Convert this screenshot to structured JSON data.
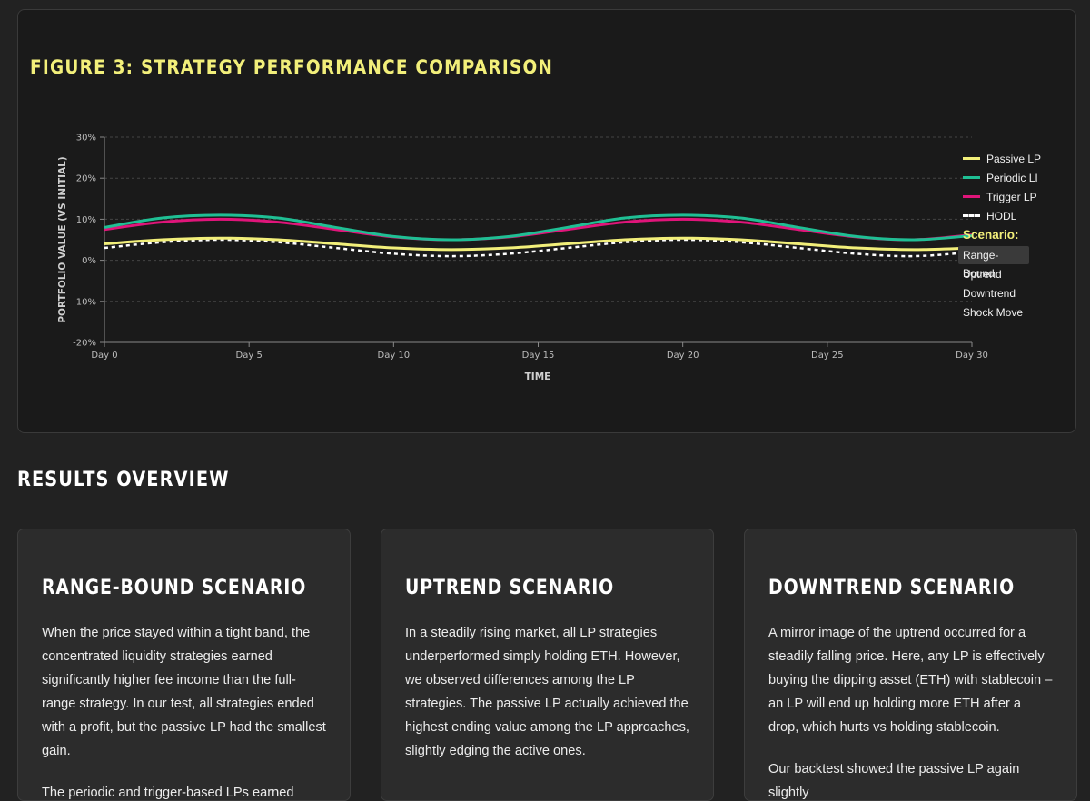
{
  "figure": {
    "title": "FIGURE 3: STRATEGY PERFORMANCE COMPARISON",
    "legend": [
      {
        "label": "Passive LP",
        "color": "#f2ef7a",
        "dashed": false
      },
      {
        "label": "Periodic LI",
        "color": "#1fbf94",
        "dashed": false
      },
      {
        "label": "Trigger LP",
        "color": "#e0157a",
        "dashed": false
      },
      {
        "label": "HODL",
        "color": "#ffffff",
        "dashed": true
      }
    ],
    "scenario_label": "Scenario:",
    "scenarios": [
      "Range-Bound",
      "Uptrend",
      "Downtrend",
      "Shock Move"
    ],
    "active_scenario": "Range-Bound"
  },
  "chart_data": {
    "type": "line",
    "xlabel": "TIME",
    "ylabel": "PORTFOLIO VALUE (VS INITIAL)",
    "x_ticks": [
      "Day 0",
      "Day 5",
      "Day 10",
      "Day 15",
      "Day 20",
      "Day 25",
      "Day 30"
    ],
    "y_ticks": [
      "30%",
      "20%",
      "10%",
      "0%",
      "-10%",
      "-20%"
    ],
    "ylim": [
      -20,
      30
    ],
    "xlim": [
      0,
      30
    ],
    "grid": true,
    "legend_position": "right",
    "x": [
      0,
      2,
      4,
      6,
      8,
      10,
      12,
      14,
      16,
      18,
      20,
      22,
      24,
      26,
      28,
      30
    ],
    "series": [
      {
        "name": "Passive LP",
        "values": [
          4.0,
          5.0,
          5.4,
          5.0,
          4.0,
          3.0,
          2.6,
          3.0,
          4.0,
          5.0,
          5.4,
          5.0,
          4.0,
          3.0,
          2.6,
          3.0
        ]
      },
      {
        "name": "Periodic LI",
        "values": [
          8.0,
          10.3,
          11.0,
          10.3,
          8.0,
          5.8,
          5.0,
          5.8,
          8.0,
          10.3,
          11.0,
          10.3,
          8.0,
          5.8,
          5.0,
          6.0
        ]
      },
      {
        "name": "Trigger LP",
        "values": [
          7.5,
          9.3,
          10.0,
          9.3,
          7.5,
          5.7,
          5.0,
          5.7,
          7.5,
          9.3,
          10.0,
          9.3,
          7.5,
          5.7,
          5.0,
          6.2
        ]
      },
      {
        "name": "HODL",
        "values": [
          3.0,
          4.4,
          5.0,
          4.4,
          3.0,
          1.6,
          1.0,
          1.6,
          3.0,
          4.4,
          5.0,
          4.4,
          3.0,
          1.6,
          1.0,
          2.0
        ]
      }
    ]
  },
  "results": {
    "title": "RESULTS OVERVIEW",
    "cards": [
      {
        "title": "RANGE-BOUND SCENARIO",
        "paragraphs": [
          "When the price stayed within a tight band, the concentrated liquidity strategies earned significantly higher fee income than the full-range strategy. In our test, all strategies ended with a profit, but the passive LP had the smallest gain.",
          "The periodic and trigger-based LPs earned higher"
        ]
      },
      {
        "title": "UPTREND SCENARIO",
        "paragraphs": [
          "In a steadily rising market, all LP strategies underperformed simply holding ETH. However, we observed differences among the LP strategies. The passive LP actually achieved the highest ending value among the LP approaches, slightly edging the active ones."
        ]
      },
      {
        "title": "DOWNTREND SCENARIO",
        "paragraphs": [
          "A mirror image of the uptrend occurred for a steadily falling price. Here, any LP is effectively buying the dipping asset (ETH) with stablecoin – an LP will end up holding more ETH after a drop, which hurts vs holding stablecoin.",
          "Our backtest showed the passive LP again slightly"
        ]
      }
    ]
  }
}
